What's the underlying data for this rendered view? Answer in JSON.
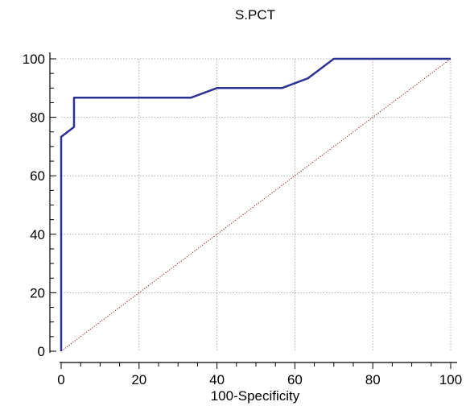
{
  "chart_data": {
    "type": "line",
    "title": "S.PCT",
    "xlabel": "100-Specificity",
    "ylabel": "",
    "xlim": [
      0,
      100
    ],
    "ylim": [
      0,
      100
    ],
    "xticks": [
      0,
      20,
      40,
      60,
      80,
      100
    ],
    "yticks": [
      0,
      20,
      40,
      60,
      80,
      100
    ],
    "xtick_labels": [
      "0",
      "20",
      "40",
      "60",
      "80",
      "100"
    ],
    "ytick_labels": [
      "0",
      "20",
      "40",
      "60",
      "80",
      "100"
    ],
    "grid": true,
    "series": [
      {
        "style": "solid",
        "color": "#2e3192",
        "x": [
          0,
          0,
          3.3,
          3.3,
          33.3,
          40,
          56.7,
          63.3,
          70,
          100
        ],
        "y": [
          0,
          73.3,
          76.7,
          86.7,
          86.7,
          90,
          90,
          93.3,
          100,
          100
        ]
      },
      {
        "style": "dotted",
        "color": "#8b1a1a",
        "x": [
          0,
          100
        ],
        "y": [
          0,
          100
        ]
      }
    ]
  }
}
